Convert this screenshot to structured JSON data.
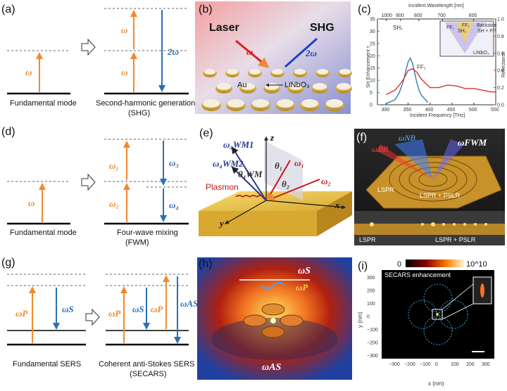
{
  "panels": {
    "a": {
      "label": "(a)",
      "caption_left": "Fundamental mode",
      "caption_right": "Second-harmonic generation",
      "caption_right2": "(SHG)",
      "omega": "ω",
      "two_omega": "2ω"
    },
    "b": {
      "label": "(b)",
      "laser": "Laser",
      "shg": "SHG",
      "omega": "ω",
      "two_omega": "2ω",
      "au": "Au",
      "linbo3": "LiNbO₃"
    },
    "c": {
      "label": "(c)",
      "top_axis_label": "Incident Wavelength [nm]",
      "top_ticks": [
        "1000",
        "900",
        "800",
        "700",
        "600"
      ],
      "bottom_axis_label": "Incident Frequency [THz]",
      "bottom_ticks": [
        "300",
        "350",
        "400",
        "450",
        "500",
        "550"
      ],
      "left_axis_label": "SH Enhancement τ",
      "left_ticks": [
        "0",
        "5",
        "10",
        "15",
        "20",
        "25",
        "30",
        "35"
      ],
      "right_axis_label": "Reflectance",
      "right_ticks": [
        "0.0",
        "0.2",
        "0.4",
        "0.6",
        "0.8",
        "1.0"
      ],
      "sh_label": "SH₁",
      "ff_label": "FF₁",
      "inset_ff": "FF₁",
      "inset_sh": "SH₁",
      "inset_ff2": "FF₁",
      "inset_backside": "Backside",
      "inset_shff": "SH + FF",
      "inset_linbo3": "LiNbO₃"
    },
    "d": {
      "label": "(d)",
      "caption_left": "Fundamental mode",
      "caption_right": "Four-wave mixing",
      "caption_right2": "(FWM)",
      "omega": "ω",
      "w1": "ω₁",
      "w2": "ω₂",
      "w3": "ω₃",
      "w4": "ω₄"
    },
    "e": {
      "label": "(e)",
      "z": "z",
      "x": "x",
      "y": "y",
      "w4wm1": "ω₄WM1",
      "w4wm2": "ω₄WM2",
      "theta4wm": "θ₄WM",
      "theta1": "θ₁",
      "theta2": "θ₂",
      "w1": "ω₁",
      "w2": "ω₂",
      "plasmon": "Plasmon"
    },
    "f": {
      "label": "(f)",
      "wnb": "ωₙᵦ",
      "wnb_text": "ωNB",
      "wfwm": "ωFWM",
      "wbb": "ωBB",
      "lspr": "LSPR",
      "lspr_pslr": "LSPR + PSLR",
      "lspr2": "LSPR",
      "lspr_pslr2": "LSPR + PSLR"
    },
    "g": {
      "label": "(g)",
      "caption_left": "Fundamental SERS",
      "caption_right": "Coherent anti-Stokes SERS",
      "caption_right2": "(SECARS)",
      "wp": "ωP",
      "ws": "ωS",
      "was": "ωAS"
    },
    "h": {
      "label": "(h)",
      "ws": "ωS",
      "wp": "ωP",
      "was": "ωAS"
    },
    "i": {
      "label": "(i)",
      "scale_min": "0",
      "scale_max": "10^10",
      "title": "SECARS enhancement",
      "ylabel": "y (nm)",
      "xlabel": "x (nm)",
      "xticks": [
        "−300",
        "−200",
        "−100",
        "0",
        "100",
        "200",
        "300"
      ],
      "yticks": [
        "300",
        "200",
        "100",
        "0",
        "−100",
        "−200",
        "−300"
      ]
    }
  },
  "chart_data": {
    "type": "line",
    "title": "",
    "xlabel": "Incident Frequency [THz]",
    "ylabel": "SH Enhancement τ",
    "y2label": "Reflectance",
    "xlim": [
      280,
      550
    ],
    "ylim": [
      0,
      35
    ],
    "y2lim": [
      0,
      1.0
    ],
    "series": [
      {
        "name": "SH₁",
        "axis": "left",
        "color": "#2b7fb8",
        "x": [
          300,
          320,
          330,
          340,
          345,
          350,
          355,
          360,
          365,
          370,
          375,
          380,
          390,
          395
        ],
        "y": [
          0.5,
          2,
          5,
          10,
          14,
          17.5,
          19,
          17,
          13,
          9,
          6,
          4,
          2,
          1
        ]
      },
      {
        "name": "FF₁",
        "axis": "right",
        "color": "#d9342b",
        "x": [
          300,
          320,
          330,
          340,
          350,
          360,
          370,
          380,
          400,
          420,
          440,
          460,
          480,
          500,
          520,
          540,
          550
        ],
        "y": [
          0.12,
          0.17,
          0.23,
          0.3,
          0.4,
          0.42,
          0.38,
          0.3,
          0.2,
          0.2,
          0.23,
          0.22,
          0.19,
          0.19,
          0.17,
          0.15,
          0.15
        ]
      }
    ]
  }
}
